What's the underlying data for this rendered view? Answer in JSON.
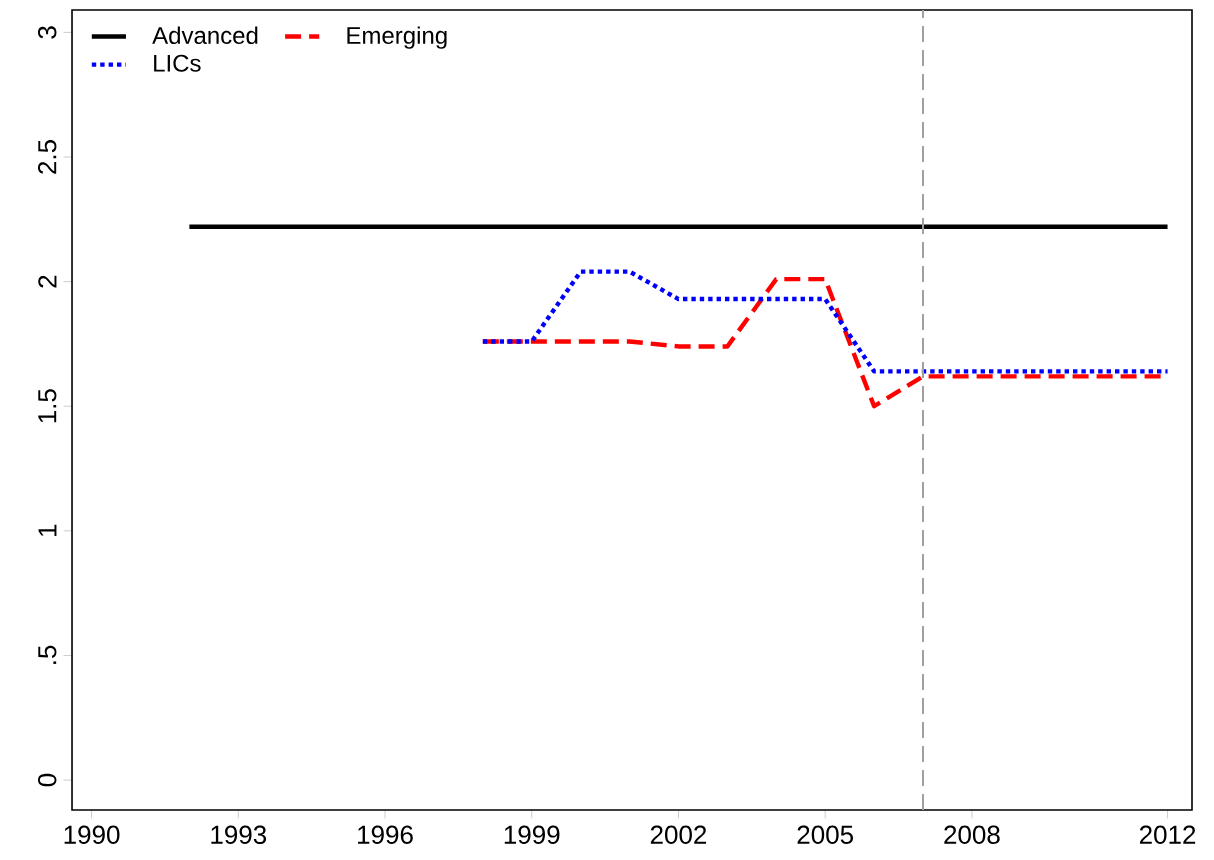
{
  "chart_data": {
    "type": "line",
    "x": [
      1992,
      1993,
      1994,
      1995,
      1996,
      1997,
      1998,
      1999,
      2000,
      2001,
      2002,
      2003,
      2004,
      2005,
      2006,
      2007,
      2008,
      2009,
      2010,
      2011,
      2012
    ],
    "series": [
      {
        "name": "Advanced",
        "color": "#000000",
        "line_style": "solid",
        "marker": "none",
        "values": [
          2.22,
          2.22,
          2.22,
          2.22,
          2.22,
          2.22,
          2.22,
          2.22,
          2.22,
          2.22,
          2.22,
          2.22,
          2.22,
          2.22,
          2.22,
          2.22,
          2.22,
          2.22,
          2.22,
          2.22,
          2.22
        ]
      },
      {
        "name": "Emerging",
        "color": "#ff0000",
        "line_style": "dashed",
        "marker": "none",
        "values": [
          null,
          null,
          null,
          null,
          null,
          null,
          1.76,
          1.76,
          1.76,
          1.76,
          1.74,
          1.74,
          2.01,
          2.01,
          1.5,
          1.62,
          1.62,
          1.62,
          1.62,
          1.62,
          1.62
        ]
      },
      {
        "name": "LICs",
        "color": "#0000ff",
        "line_style": "dotted",
        "marker": "none",
        "values": [
          null,
          null,
          null,
          null,
          null,
          null,
          1.76,
          1.76,
          2.04,
          2.04,
          1.93,
          1.93,
          1.93,
          1.93,
          1.64,
          1.64,
          1.64,
          1.64,
          1.64,
          1.64,
          1.64
        ]
      }
    ],
    "xlim": [
      1989.6,
      2012.5
    ],
    "xticks": [
      1990,
      1993,
      1996,
      1999,
      2002,
      2005,
      2008,
      2012
    ],
    "ylim": [
      -0.12,
      3.09
    ],
    "yticks": [
      {
        "value": 0,
        "label": "0"
      },
      {
        "value": 0.5,
        "label": ".5"
      },
      {
        "value": 1,
        "label": "1"
      },
      {
        "value": 1.5,
        "label": "1.5"
      },
      {
        "value": 2,
        "label": "2"
      },
      {
        "value": 2.5,
        "label": "2.5"
      },
      {
        "value": 3,
        "label": "3"
      }
    ],
    "ref_lines": [
      {
        "axis": "x",
        "value": 2007,
        "color": "#a0a0a0",
        "line_style": "dashed"
      }
    ],
    "grid": false,
    "legend": "top left"
  }
}
